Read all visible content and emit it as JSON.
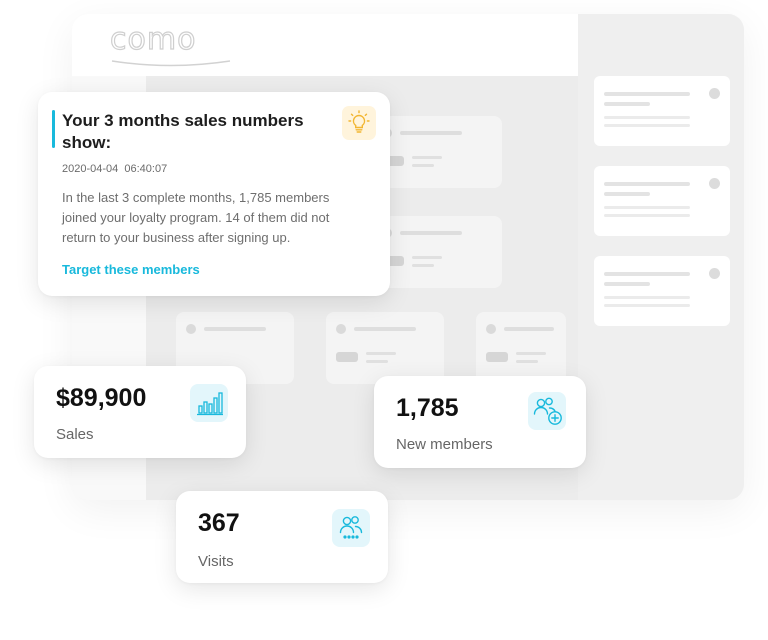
{
  "app": {
    "logo_text": "como"
  },
  "insight": {
    "title": "Your 3 months sales numbers show:",
    "timestamp": "2020-04-04  06:40:07",
    "body": "In the last 3 complete months, 1,785 members joined your loyalty program. 14 of them did not return to your business after signing up.",
    "link_label": "Target these members",
    "icon": "lightbulb-icon"
  },
  "stats": {
    "sales": {
      "value": "$89,900",
      "label": "Sales",
      "icon": "bar-chart-icon"
    },
    "new_members": {
      "value": "1,785",
      "label": "New members",
      "icon": "add-user-icon"
    },
    "visits": {
      "value": "367",
      "label": "Visits",
      "icon": "users-icon"
    }
  },
  "colors": {
    "accent": "#18b9dc",
    "icon_bg": "#e3f6fb",
    "bulb_bg": "#fff4dc",
    "bulb": "#f2b632"
  }
}
